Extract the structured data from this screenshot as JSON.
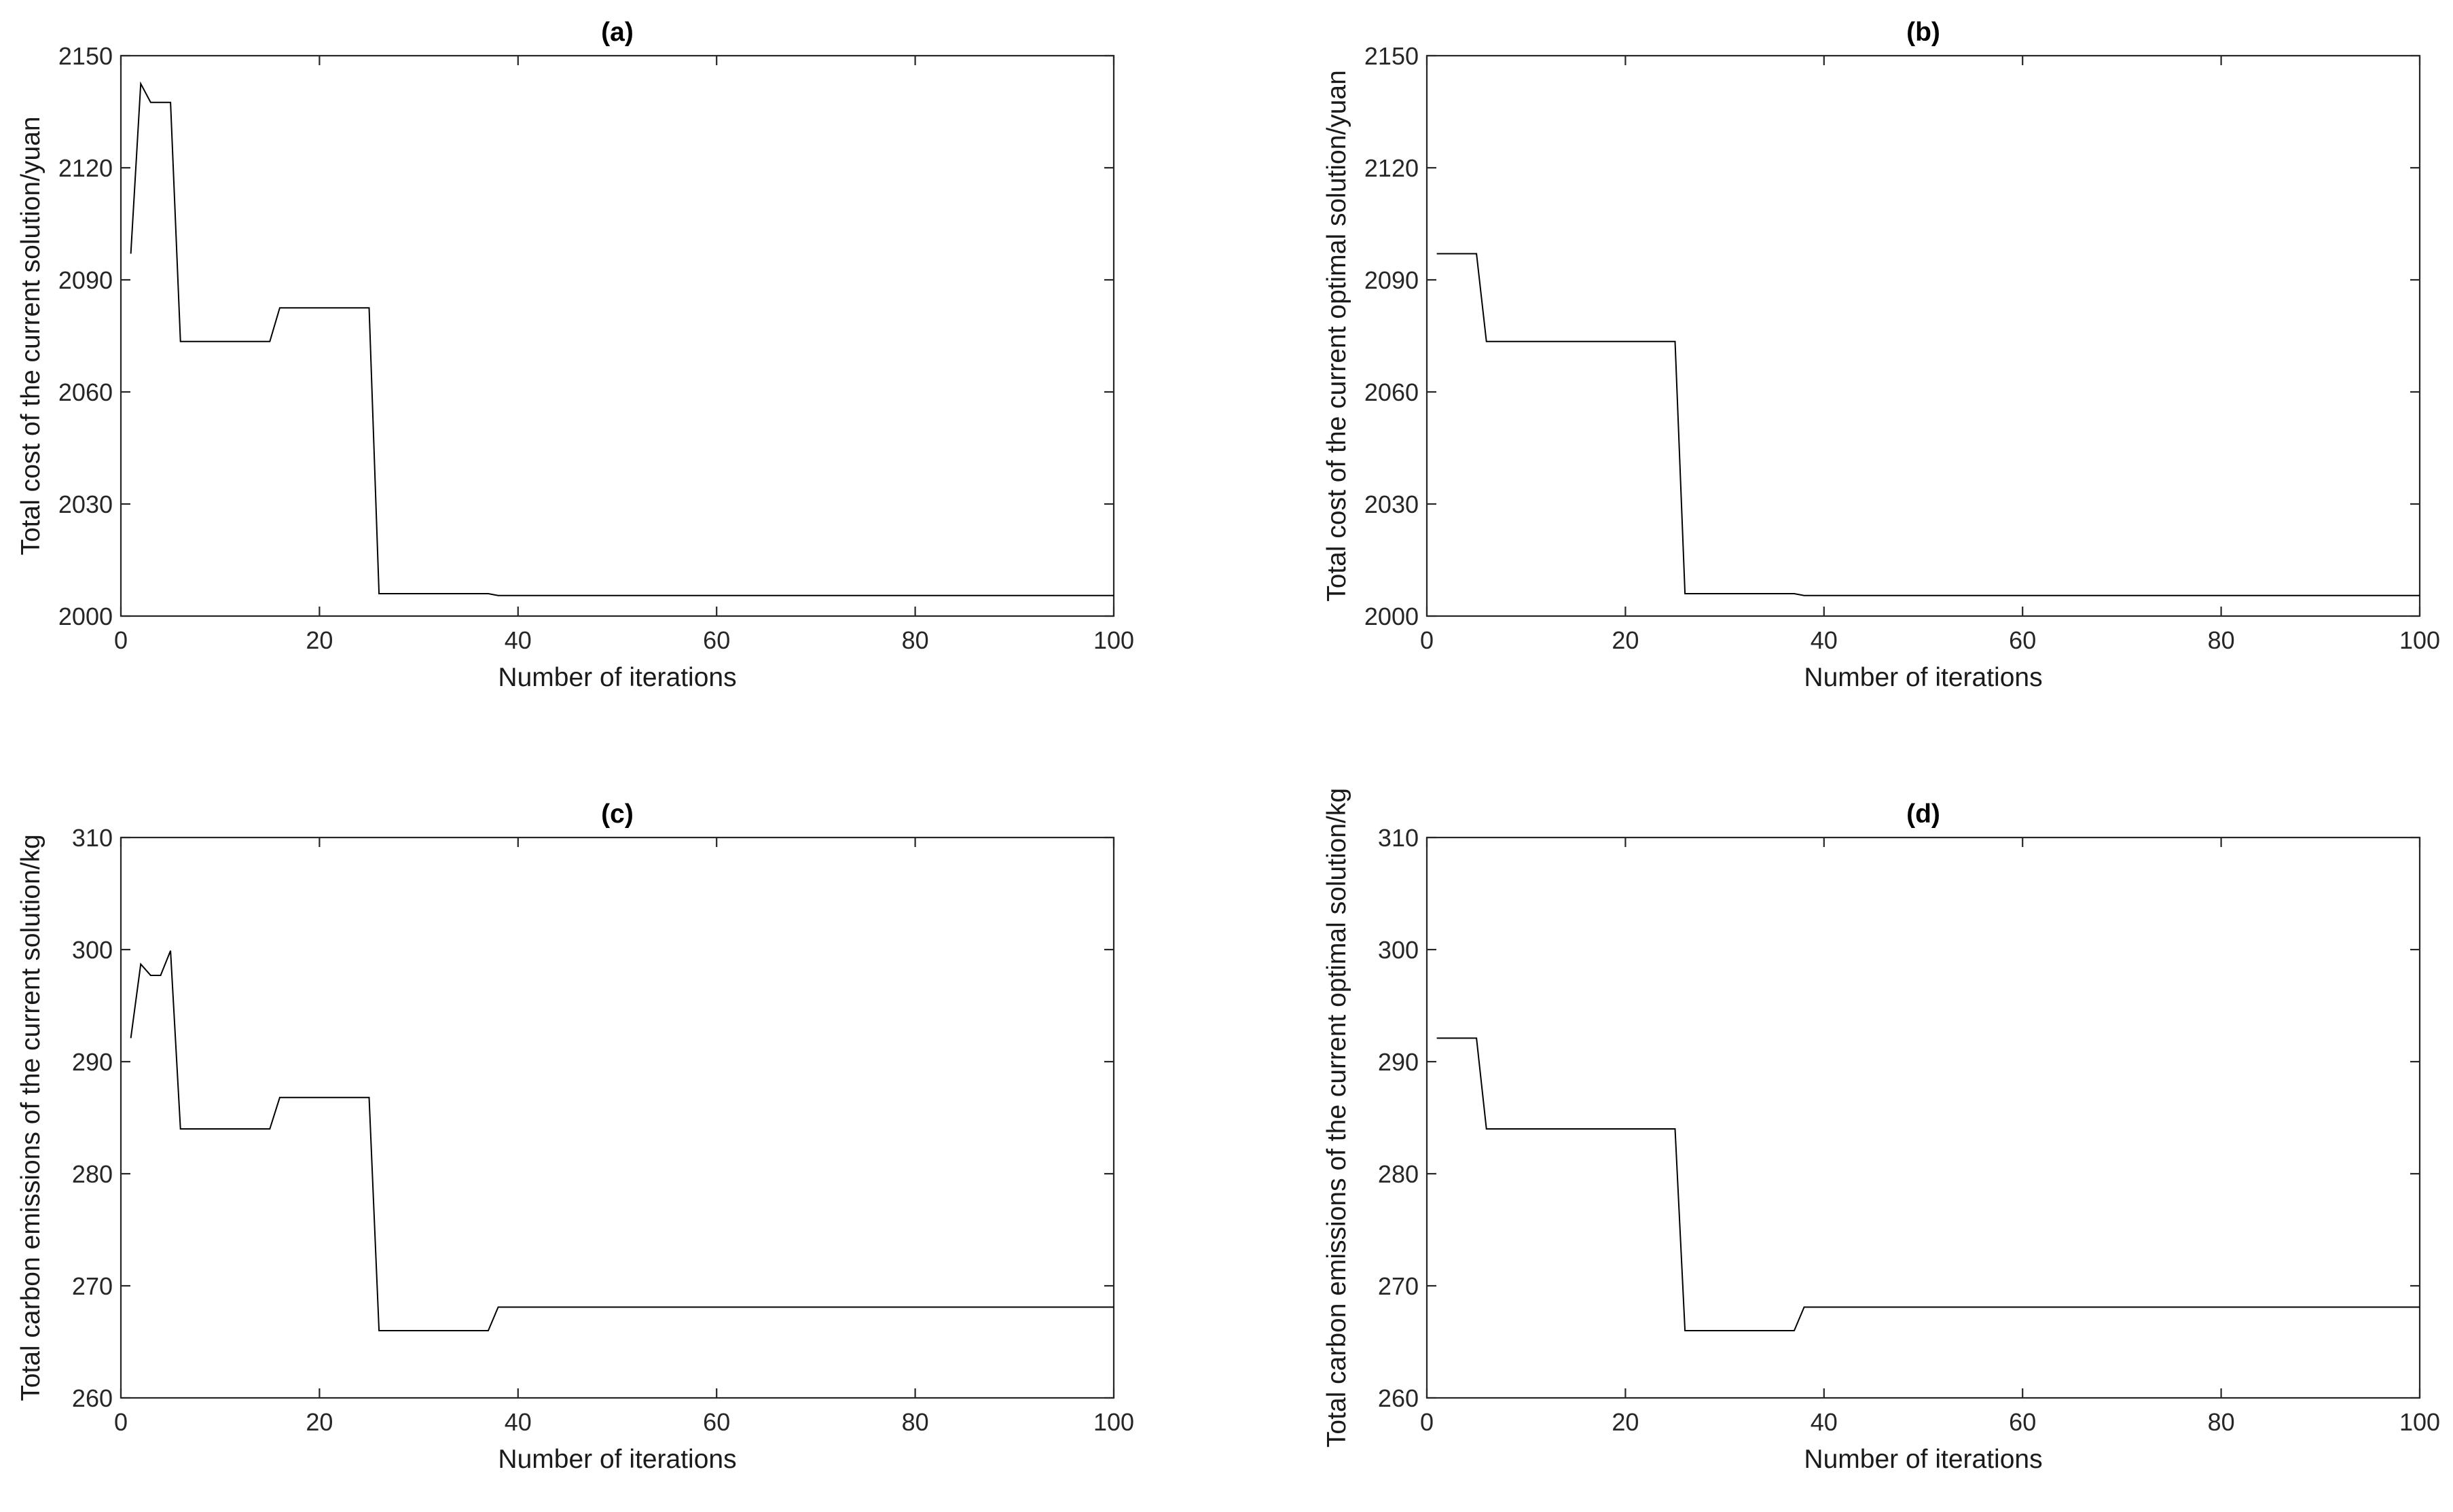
{
  "chart_data": [
    {
      "type": "line",
      "title": "(a)",
      "xlabel": "Number of iterations",
      "ylabel": "Total cost of the current solution/yuan",
      "xlim": [
        0,
        100
      ],
      "ylim": [
        2000,
        2150
      ],
      "xticks": [
        0,
        20,
        40,
        60,
        80,
        100
      ],
      "yticks": [
        2000,
        2030,
        2060,
        2090,
        2120,
        2150
      ],
      "grid": false,
      "series": [
        {
          "x": [
            1,
            2,
            3,
            4,
            5,
            6,
            15,
            16,
            25,
            26,
            37,
            38,
            100
          ],
          "y": [
            2097,
            2142.5,
            2137.5,
            2137.5,
            2137.5,
            2073.5,
            2073.5,
            2082.5,
            2082.5,
            2006,
            2006,
            2005.5,
            2005.5
          ]
        }
      ]
    },
    {
      "type": "line",
      "title": "(b)",
      "xlabel": "Number of iterations",
      "ylabel": "Total cost of the current optimal solution/yuan",
      "xlim": [
        0,
        100
      ],
      "ylim": [
        2000,
        2150
      ],
      "xticks": [
        0,
        20,
        40,
        60,
        80,
        100
      ],
      "yticks": [
        2000,
        2030,
        2060,
        2090,
        2120,
        2150
      ],
      "grid": false,
      "series": [
        {
          "x": [
            1,
            5,
            6,
            25,
            26,
            37,
            38,
            100
          ],
          "y": [
            2097,
            2097,
            2073.5,
            2073.5,
            2006,
            2006,
            2005.5,
            2005.5
          ]
        }
      ]
    },
    {
      "type": "line",
      "title": "(c)",
      "xlabel": "Number of iterations",
      "ylabel": "Total carbon emissions of the current solution/kg",
      "xlim": [
        0,
        100
      ],
      "ylim": [
        260,
        310
      ],
      "xticks": [
        0,
        20,
        40,
        60,
        80,
        100
      ],
      "yticks": [
        260,
        270,
        280,
        290,
        300,
        310
      ],
      "grid": false,
      "series": [
        {
          "x": [
            1,
            2,
            3,
            4,
            5,
            6,
            15,
            16,
            25,
            26,
            37,
            38,
            100
          ],
          "y": [
            292.1,
            298.7,
            297.7,
            297.7,
            299.9,
            284,
            284,
            286.8,
            286.8,
            266,
            266,
            268.1,
            268.1
          ]
        }
      ]
    },
    {
      "type": "line",
      "title": "(d)",
      "xlabel": "Number of iterations",
      "ylabel": "Total carbon emissions of the current optimal solution/kg",
      "xlim": [
        0,
        100
      ],
      "ylim": [
        260,
        310
      ],
      "xticks": [
        0,
        20,
        40,
        60,
        80,
        100
      ],
      "yticks": [
        260,
        270,
        280,
        290,
        300,
        310
      ],
      "grid": false,
      "series": [
        {
          "x": [
            1,
            5,
            6,
            25,
            26,
            37,
            38,
            100
          ],
          "y": [
            292.1,
            292.1,
            284,
            284,
            266,
            266,
            268.1,
            268.1
          ]
        }
      ]
    }
  ]
}
